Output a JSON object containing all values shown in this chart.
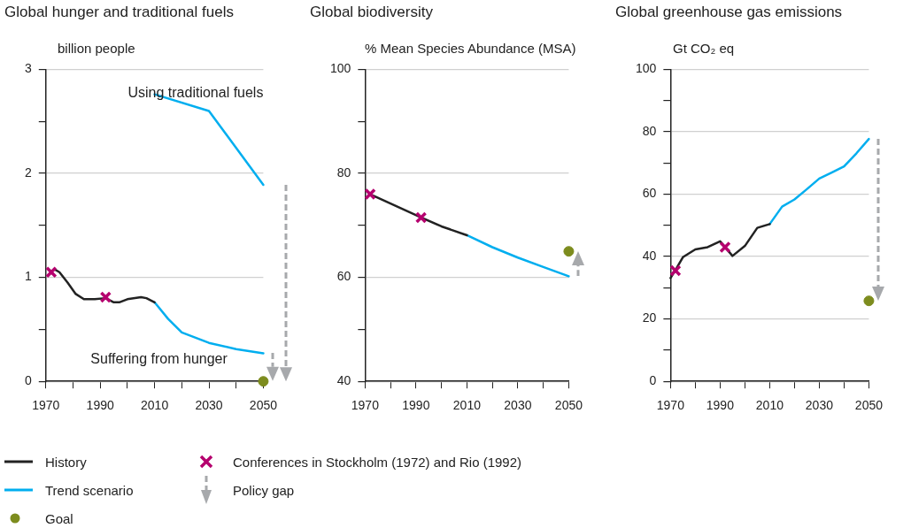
{
  "chart_data": [
    {
      "type": "line",
      "title": "Global hunger and traditional fuels",
      "ylabel": "billion people",
      "xlim": [
        1970,
        2050
      ],
      "xticks": [
        1970,
        {
          "value": 1980,
          "label": null
        },
        1990,
        {
          "value": 2000,
          "label": null
        },
        2010,
        {
          "value": 2020,
          "label": null
        },
        2030,
        {
          "value": 2040,
          "label": null
        },
        2050
      ],
      "ylim": [
        0,
        3
      ],
      "yticks": [
        0,
        {
          "value": 0.5,
          "label": null
        },
        1,
        {
          "value": 1.5,
          "label": null
        },
        2,
        {
          "value": 2.5,
          "label": null
        },
        3
      ],
      "grid": "y",
      "legend": "bottom",
      "annotations": [
        "Using traditional fuels",
        "Suffering from hunger",
        "Policy gap"
      ],
      "series": [
        {
          "name": "History",
          "color": "#222222",
          "x": [
            1973,
            1975,
            1978,
            1981,
            1984,
            1988,
            1992,
            1995,
            1997,
            2000,
            2005,
            2007,
            2010
          ],
          "values": [
            1.08,
            1.05,
            0.95,
            0.84,
            0.79,
            0.79,
            0.8,
            0.76,
            0.76,
            0.79,
            0.81,
            0.8,
            0.76
          ]
        },
        {
          "name": "Trend scenario",
          "color": "#00aeef",
          "x": [
            2010,
            2015,
            2020,
            2030,
            2040,
            2050
          ],
          "values": [
            0.76,
            0.6,
            0.47,
            0.37,
            0.31,
            0.27
          ]
        },
        {
          "color": "#00aeef",
          "x": [
            2010,
            2030,
            2050
          ],
          "values": [
            2.76,
            2.6,
            1.89
          ]
        },
        {
          "name": "Goal",
          "type": "scatter",
          "marker": "circle",
          "color": "#7d8c1e",
          "x": [
            2050
          ],
          "values": [
            0
          ]
        },
        {
          "name": "Conferences in Stockholm (1972) and Rio (1992)",
          "type": "scatter",
          "marker": "cross",
          "color": "#b5006e",
          "x": [
            1972,
            1992
          ],
          "values": [
            1.05,
            0.81
          ]
        }
      ]
    },
    {
      "type": "line",
      "title": "Global biodiversity",
      "ylabel": "% Mean Species Abundance (MSA)",
      "xlim": [
        1970,
        2050
      ],
      "xticks": [
        1970,
        {
          "value": 1980,
          "label": null
        },
        1990,
        {
          "value": 2000,
          "label": null
        },
        2010,
        {
          "value": 2020,
          "label": null
        },
        2030,
        {
          "value": 2040,
          "label": null
        },
        2050
      ],
      "ylim": [
        40,
        100
      ],
      "yticks": [
        40,
        {
          "value": 50,
          "label": null
        },
        60,
        {
          "value": 70,
          "label": null
        },
        80,
        {
          "value": 90,
          "label": null
        },
        100
      ],
      "grid": "y",
      "series": [
        {
          "color": "#222222",
          "x": [
            1972,
            1980,
            1992,
            2000,
            2010
          ],
          "values": [
            76,
            74.2,
            71.5,
            69.8,
            68.1
          ]
        },
        {
          "color": "#00aeef",
          "x": [
            2010,
            2020,
            2030,
            2040,
            2050
          ],
          "values": [
            68.1,
            65.8,
            63.8,
            62,
            60.2
          ]
        },
        {
          "type": "scatter",
          "marker": "circle",
          "color": "#7d8c1e",
          "x": [
            2050
          ],
          "values": [
            65
          ]
        },
        {
          "type": "scatter",
          "marker": "cross",
          "color": "#b5006e",
          "x": [
            1972,
            1992
          ],
          "values": [
            76,
            71.5
          ]
        }
      ]
    },
    {
      "type": "line",
      "title": "Global greenhouse gas emissions",
      "ylabel": "Gt CO₂ eq",
      "xlim": [
        1970,
        2050
      ],
      "xticks": [
        1970,
        {
          "value": 1980,
          "label": null
        },
        1990,
        {
          "value": 2000,
          "label": null
        },
        2010,
        {
          "value": 2020,
          "label": null
        },
        2030,
        {
          "value": 2040,
          "label": null
        },
        2050
      ],
      "ylim": [
        0,
        100
      ],
      "yticks": [
        0,
        {
          "value": 10,
          "label": null
        },
        20,
        {
          "value": 30,
          "label": null
        },
        40,
        {
          "value": 50,
          "label": null
        },
        60,
        {
          "value": 70,
          "label": null
        },
        80,
        {
          "value": 90,
          "label": null
        },
        100
      ],
      "grid": "y",
      "series": [
        {
          "color": "#222222",
          "x": [
            1970,
            1972.4,
            1975,
            1980,
            1985,
            1990,
            1995,
            2000,
            2005,
            2010
          ],
          "values": [
            33.1,
            36.2,
            39.8,
            42.3,
            43,
            44.9,
            40.2,
            43.4,
            49.2,
            50.4
          ]
        },
        {
          "color": "#00aeef",
          "x": [
            2010,
            2015,
            2020,
            2025,
            2030,
            2035,
            2040,
            2045,
            2050
          ],
          "values": [
            50.4,
            56,
            58.3,
            61.6,
            65,
            66.9,
            68.9,
            73.1,
            77.7
          ]
        },
        {
          "type": "scatter",
          "marker": "circle",
          "color": "#7d8c1e",
          "x": [
            2050
          ],
          "values": [
            25.8
          ]
        },
        {
          "type": "scatter",
          "marker": "cross",
          "color": "#b5006e",
          "x": [
            1972,
            1992
          ],
          "values": [
            35.5,
            43
          ]
        }
      ]
    }
  ]
}
